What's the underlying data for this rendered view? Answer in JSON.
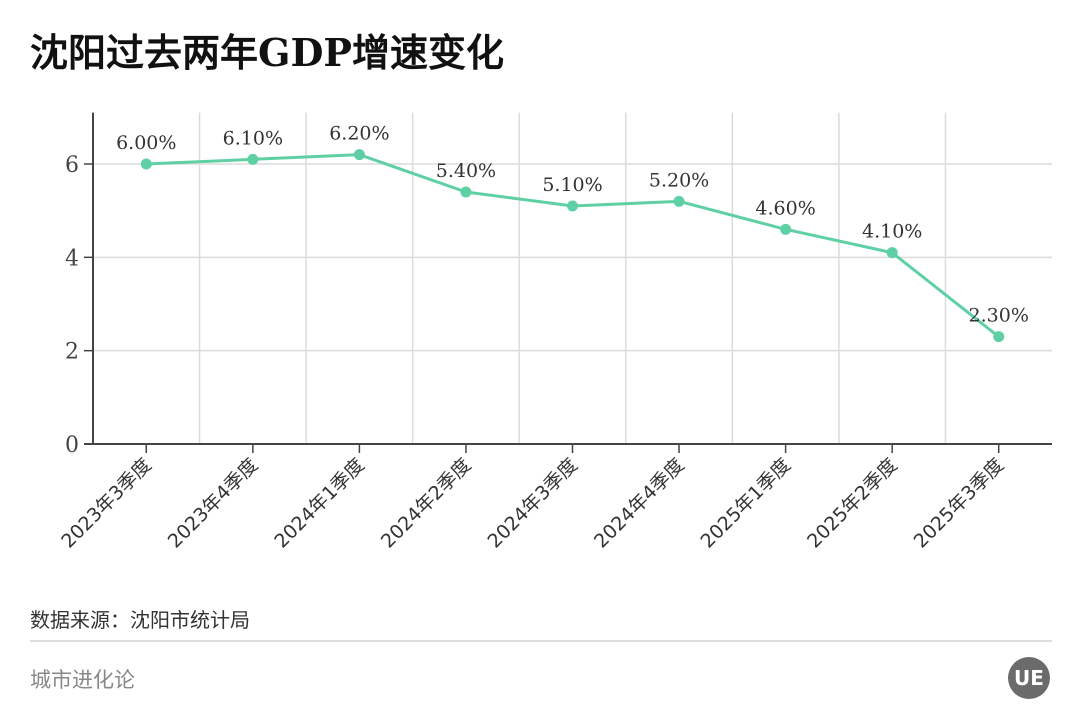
{
  "title": "沈阳过去两年GDP增速变化",
  "source": "数据来源：沈阳市统计局",
  "brand": "城市进化论",
  "logo_text": "UE",
  "colors": {
    "line": "#5fd0a4",
    "grid": "#dcdcdc",
    "axis": "#444444"
  },
  "chart_data": {
    "type": "line",
    "title": "沈阳过去两年GDP增速变化",
    "categories": [
      "2023年3季度",
      "2023年4季度",
      "2024年1季度",
      "2024年2季度",
      "2024年3季度",
      "2024年4季度",
      "2025年1季度",
      "2025年2季度",
      "2025年3季度"
    ],
    "values": [
      6.0,
      6.1,
      6.2,
      5.4,
      5.1,
      5.2,
      4.6,
      4.1,
      2.3
    ],
    "data_labels": [
      "6.00%",
      "6.10%",
      "6.20%",
      "5.40%",
      "5.10%",
      "5.20%",
      "4.60%",
      "4.10%",
      "2.30%"
    ],
    "yticks": [
      0,
      2,
      4,
      6
    ],
    "ylim": [
      0,
      7.1
    ],
    "xlabel": "",
    "ylabel": "",
    "grid": true,
    "markers": true
  }
}
